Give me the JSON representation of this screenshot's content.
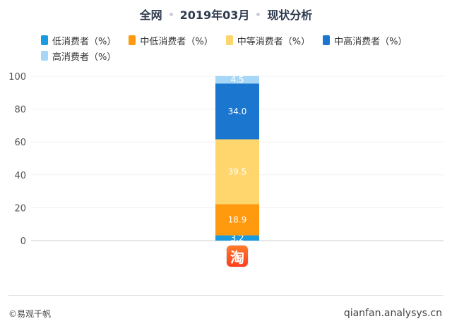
{
  "title": {
    "part1": "全网",
    "part2": "2019年03月",
    "part3": "现状分析"
  },
  "chart_data": {
    "type": "bar",
    "stacked": true,
    "categories": [
      ""
    ],
    "ylim": [
      0,
      100
    ],
    "yticks": [
      0,
      20,
      40,
      60,
      80,
      100
    ],
    "legend_position": "top",
    "grid": true,
    "series": [
      {
        "name": "低消费者（%）",
        "values": [
          3.2
        ],
        "value_label": "3.2",
        "color": "#1a9be0"
      },
      {
        "name": "中低消费者（%）",
        "values": [
          18.9
        ],
        "value_label": "18.9",
        "color": "#ff9a0e"
      },
      {
        "name": "中等消费者（%）",
        "values": [
          39.5
        ],
        "value_label": "39.5",
        "color": "#ffd66e"
      },
      {
        "name": "中高消费者（%）",
        "values": [
          34.0
        ],
        "value_label": "34.0",
        "color": "#1b76d0"
      },
      {
        "name": "高消费者（%）",
        "values": [
          4.5
        ],
        "value_label": "4.5",
        "color": "#a7d7f7"
      }
    ]
  },
  "category_icon": {
    "name": "taobao-app-icon",
    "glyph": "淘"
  },
  "footer": {
    "copyright": "©易观千帆",
    "website": "qianfan.analysys.cn"
  }
}
